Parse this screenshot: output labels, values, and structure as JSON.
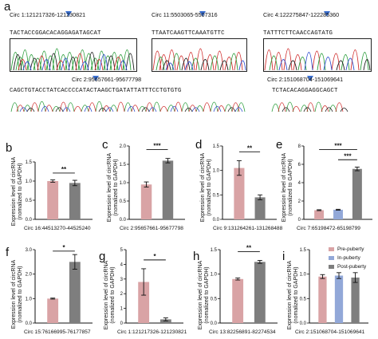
{
  "panel_a": {
    "label": "a",
    "traces": [
      {
        "title": "Circ 1:121217326-121230821",
        "sequence": "TACTACCGGACACAGGAGATAGCAT"
      },
      {
        "title": "Circ 11:5503065-5507316",
        "sequence": "TTAATCAAGTTCAAATGTTC"
      },
      {
        "title": "Circ 4:122275847-122285360",
        "sequence": "TATTTCTTCAACCAGTATG"
      },
      {
        "title": "Circ 2:95657661-95677798",
        "sequence": "CAGCTGTACCTATCACCCCATACTAAGCTGATATTATTTCCTGTGTG"
      },
      {
        "title": "Circ 2:151068704-151069641",
        "sequence": "TCTACACAGGAGGCAGCT"
      }
    ]
  },
  "charts": {
    "b": {
      "label": "b",
      "ylabel1": "Expression level of circRNA",
      "ylabel2": "(nomalized to GAPDH)",
      "xlabel": "Circ 16:44513270-44525240",
      "sig": "**"
    },
    "c": {
      "label": "c",
      "ylabel1": "Expression level of circRNA",
      "ylabel2": "(nomalized to GAPDH)",
      "xlabel": "Circ 2:95657661-95677798",
      "sig": "***"
    },
    "d": {
      "label": "d",
      "ylabel1": "Expression level of circRNA",
      "ylabel2": "(nomalized to GAPDH)",
      "xlabel": "Circ 9:131264261-131268488",
      "sig": "**"
    },
    "e": {
      "label": "e",
      "ylabel1": "Expression level of circRNA",
      "ylabel2": "(nomalized to GAPDH)",
      "xlabel": "Circ 7:65198472-65198799",
      "sig1": "***",
      "sig2": "***"
    },
    "f": {
      "label": "f",
      "ylabel1": "Expression level of circRNA",
      "ylabel2": "(nomalized to GAPDH)",
      "xlabel": "Circ 15:76166995-76177857",
      "sig": "*"
    },
    "g": {
      "label": "g",
      "ylabel1": "Expression level of circRNA",
      "ylabel2": "(nomalized to GAPDH)",
      "xlabel": "Circ 1:121217326-121230821",
      "sig": "*"
    },
    "h": {
      "label": "h",
      "ylabel1": "Expression level of circRNA",
      "ylabel2": "(nomalized to GAPDH)",
      "xlabel": "Circ 13:82256891-82274534",
      "sig": "**"
    },
    "i": {
      "label": "i",
      "ylabel1": "Expression level of circRNA",
      "ylabel2": "(nomalized to GAPDH)",
      "xlabel": "Circ 2:151068704-151069641"
    }
  },
  "legend": [
    "Pre-puberty",
    "In-puberty",
    "Post-puberty"
  ],
  "colors": {
    "pre": "#d9a3a5",
    "in": "#92a8d8",
    "post": "#7e7e7e",
    "arrow": "#3a6fd0"
  },
  "chart_data": [
    {
      "panel": "b",
      "type": "bar",
      "categories": [
        "Pre-puberty",
        "Post-puberty"
      ],
      "values": [
        1.0,
        0.95
      ],
      "errors": [
        0.03,
        0.07
      ],
      "ylim": [
        0,
        1.5
      ],
      "yticks": [
        0.0,
        0.5,
        1.0,
        1.5
      ]
    },
    {
      "panel": "c",
      "type": "bar",
      "categories": [
        "Pre-puberty",
        "Post-puberty"
      ],
      "values": [
        0.95,
        1.6
      ],
      "errors": [
        0.07,
        0.06
      ],
      "ylim": [
        0,
        2.0
      ],
      "yticks": [
        0.0,
        0.5,
        1.0,
        1.5,
        2.0
      ]
    },
    {
      "panel": "d",
      "type": "bar",
      "categories": [
        "Pre-puberty",
        "Post-puberty"
      ],
      "values": [
        1.05,
        0.45
      ],
      "errors": [
        0.15,
        0.05
      ],
      "ylim": [
        0,
        1.5
      ],
      "yticks": [
        0.0,
        0.5,
        1.0,
        1.5
      ]
    },
    {
      "panel": "e",
      "type": "bar",
      "categories": [
        "Pre-puberty",
        "In-puberty",
        "Post-puberty"
      ],
      "values": [
        1.0,
        1.05,
        5.5
      ],
      "errors": [
        0.05,
        0.05,
        0.2
      ],
      "ylim": [
        0,
        8
      ],
      "yticks": [
        0,
        2,
        4,
        6,
        8
      ]
    },
    {
      "panel": "f",
      "type": "bar",
      "categories": [
        "Pre-puberty",
        "Post-puberty"
      ],
      "values": [
        1.0,
        2.5
      ],
      "errors": [
        0.02,
        0.3
      ],
      "ylim": [
        0,
        3
      ],
      "yticks": [
        0,
        1,
        2,
        3
      ]
    },
    {
      "panel": "g",
      "type": "bar",
      "categories": [
        "Pre-puberty",
        "Post-puberty"
      ],
      "values": [
        2.8,
        0.25
      ],
      "errors": [
        0.9,
        0.1
      ],
      "ylim": [
        0,
        5
      ],
      "yticks": [
        0,
        1,
        2,
        3,
        4,
        5
      ]
    },
    {
      "panel": "h",
      "type": "bar",
      "categories": [
        "Pre-puberty",
        "Post-puberty"
      ],
      "values": [
        0.9,
        1.25
      ],
      "errors": [
        0.02,
        0.03
      ],
      "ylim": [
        0,
        1.5
      ],
      "yticks": [
        0.0,
        0.5,
        1.0,
        1.5
      ]
    },
    {
      "panel": "i",
      "type": "bar",
      "categories": [
        "Pre-puberty",
        "In-puberty",
        "Post-puberty"
      ],
      "values": [
        0.95,
        0.97,
        0.93
      ],
      "errors": [
        0.04,
        0.06,
        0.1
      ],
      "ylim": [
        0,
        1.5
      ],
      "yticks": [
        0.0,
        0.5,
        1.0,
        1.5
      ]
    }
  ]
}
